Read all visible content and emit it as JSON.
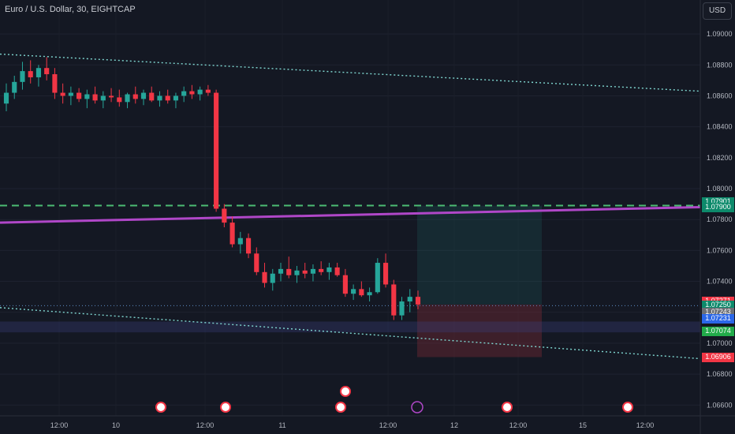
{
  "header": {
    "symbol_title": "Euro / U.S. Dollar, 30, EIGHTCAP",
    "currency_button": "USD"
  },
  "colors": {
    "background": "#141823",
    "up": "#26a69a",
    "down": "#f23645",
    "channel": "#7fd6d0",
    "trendline": "#b047c8",
    "dashed": "#4cbb73"
  },
  "price_tags": [
    {
      "id": "tag-1",
      "label": "1.07901",
      "price": 1.07913,
      "bg": "#0d8a6b"
    },
    {
      "id": "tag-2",
      "label": "1.07900",
      "price": 1.0788,
      "bg": "#0d8a6b"
    },
    {
      "id": "tag-3",
      "label": "1.07271",
      "price": 1.07271,
      "bg": "#f23645"
    },
    {
      "id": "tag-4",
      "label": "1.07250",
      "sub": "19:33",
      "price": 1.07243,
      "bg": "#0d8a6b"
    },
    {
      "id": "tag-5",
      "label": "1.07243",
      "price": 1.072,
      "bg": "#6b6e75"
    },
    {
      "id": "tag-6",
      "label": "1.07231",
      "price": 1.07158,
      "bg": "#2b67e8"
    },
    {
      "id": "tag-7",
      "label": "1.07074",
      "price": 1.07074,
      "bg": "#22ab4a"
    },
    {
      "id": "tag-8",
      "label": "1.06906",
      "price": 1.06906,
      "bg": "#f23645"
    }
  ],
  "chart_data": {
    "type": "candlestick",
    "y_axis": {
      "ticks": [
        1.09,
        1.088,
        1.086,
        1.084,
        1.082,
        1.08,
        1.078,
        1.076,
        1.074,
        1.072,
        1.07,
        1.068,
        1.066
      ],
      "tick_labels": [
        "1.09000",
        "1.08800",
        "1.08600",
        "1.08400",
        "1.08200",
        "1.08000",
        "1.07800",
        "1.07600",
        "1.07400",
        "1.07200",
        "1.07000",
        "1.06800",
        "1.06600"
      ],
      "range": [
        1.0653,
        1.0922
      ]
    },
    "x_axis": {
      "tick_labels": [
        "12:00",
        "10",
        "12:00",
        "11",
        "12:00",
        "12",
        "12:00",
        "15",
        "12:00"
      ]
    },
    "candles_ohlc": [
      [
        1.0855,
        1.0868,
        1.085,
        1.0862
      ],
      [
        1.0862,
        1.0873,
        1.0858,
        1.0869
      ],
      [
        1.0869,
        1.0882,
        1.0864,
        1.0876
      ],
      [
        1.0876,
        1.0883,
        1.0868,
        1.0872
      ],
      [
        1.0872,
        1.088,
        1.0866,
        1.0878
      ],
      [
        1.0878,
        1.0885,
        1.087,
        1.0874
      ],
      [
        1.0874,
        1.0878,
        1.0858,
        1.0862
      ],
      [
        1.0862,
        1.0868,
        1.0855,
        1.086
      ],
      [
        1.086,
        1.0866,
        1.0854,
        1.0862
      ],
      [
        1.0862,
        1.0865,
        1.0856,
        1.0858
      ],
      [
        1.0858,
        1.0864,
        1.0852,
        1.0861
      ],
      [
        1.0861,
        1.0866,
        1.0855,
        1.0857
      ],
      [
        1.0857,
        1.0863,
        1.0852,
        1.086
      ],
      [
        1.086,
        1.0865,
        1.0856,
        1.0859
      ],
      [
        1.0859,
        1.0864,
        1.0853,
        1.0856
      ],
      [
        1.0856,
        1.0862,
        1.0852,
        1.0861
      ],
      [
        1.0861,
        1.0866,
        1.0855,
        1.0858
      ],
      [
        1.0858,
        1.0864,
        1.0854,
        1.0862
      ],
      [
        1.0862,
        1.0866,
        1.0856,
        1.0857
      ],
      [
        1.0857,
        1.0863,
        1.0853,
        1.086
      ],
      [
        1.086,
        1.0864,
        1.0855,
        1.0857
      ],
      [
        1.0857,
        1.0862,
        1.0852,
        1.086
      ],
      [
        1.086,
        1.0866,
        1.0856,
        1.0863
      ],
      [
        1.0863,
        1.0867,
        1.0858,
        1.0861
      ],
      [
        1.0861,
        1.0866,
        1.0857,
        1.0864
      ],
      [
        1.0864,
        1.0867,
        1.086,
        1.0862
      ],
      [
        1.0862,
        1.0864,
        1.0785,
        1.0787
      ],
      [
        1.0787,
        1.079,
        1.0775,
        1.0778
      ],
      [
        1.0778,
        1.0782,
        1.0762,
        1.0764
      ],
      [
        1.0764,
        1.0772,
        1.0758,
        1.0768
      ],
      [
        1.0768,
        1.0771,
        1.0755,
        1.0758
      ],
      [
        1.0758,
        1.0762,
        1.0744,
        1.0746
      ],
      [
        1.0746,
        1.0752,
        1.0736,
        1.0739
      ],
      [
        1.0739,
        1.0748,
        1.0734,
        1.0745
      ],
      [
        1.0745,
        1.0752,
        1.074,
        1.0748
      ],
      [
        1.0748,
        1.0756,
        1.0742,
        1.0744
      ],
      [
        1.0744,
        1.075,
        1.0739,
        1.0747
      ],
      [
        1.0747,
        1.0752,
        1.0742,
        1.0745
      ],
      [
        1.0745,
        1.0751,
        1.074,
        1.0748
      ],
      [
        1.0748,
        1.0753,
        1.0744,
        1.0746
      ],
      [
        1.0746,
        1.0752,
        1.0741,
        1.0749
      ],
      [
        1.0749,
        1.0752,
        1.0743,
        1.0744
      ],
      [
        1.0744,
        1.0748,
        1.073,
        1.0732
      ],
      [
        1.0732,
        1.0738,
        1.0728,
        1.0735
      ],
      [
        1.0735,
        1.074,
        1.073,
        1.0731
      ],
      [
        1.0731,
        1.0736,
        1.0727,
        1.0733
      ],
      [
        1.0733,
        1.0755,
        1.0732,
        1.0752
      ],
      [
        1.0752,
        1.0758,
        1.0736,
        1.0738
      ],
      [
        1.0738,
        1.0741,
        1.0715,
        1.0718
      ],
      [
        1.0718,
        1.073,
        1.0715,
        1.0727
      ],
      [
        1.0727,
        1.0735,
        1.072,
        1.073
      ],
      [
        1.073,
        1.0734,
        1.0722,
        1.0725
      ]
    ],
    "channel_upper": [
      [
        0,
        1.0887
      ],
      [
        888,
        1.0863
      ]
    ],
    "channel_lower": [
      [
        0,
        1.0723
      ],
      [
        888,
        1.069
      ]
    ],
    "trendline": [
      [
        0,
        1.0778
      ],
      [
        888,
        1.0788
      ]
    ],
    "dashed_level": 1.0789
  }
}
